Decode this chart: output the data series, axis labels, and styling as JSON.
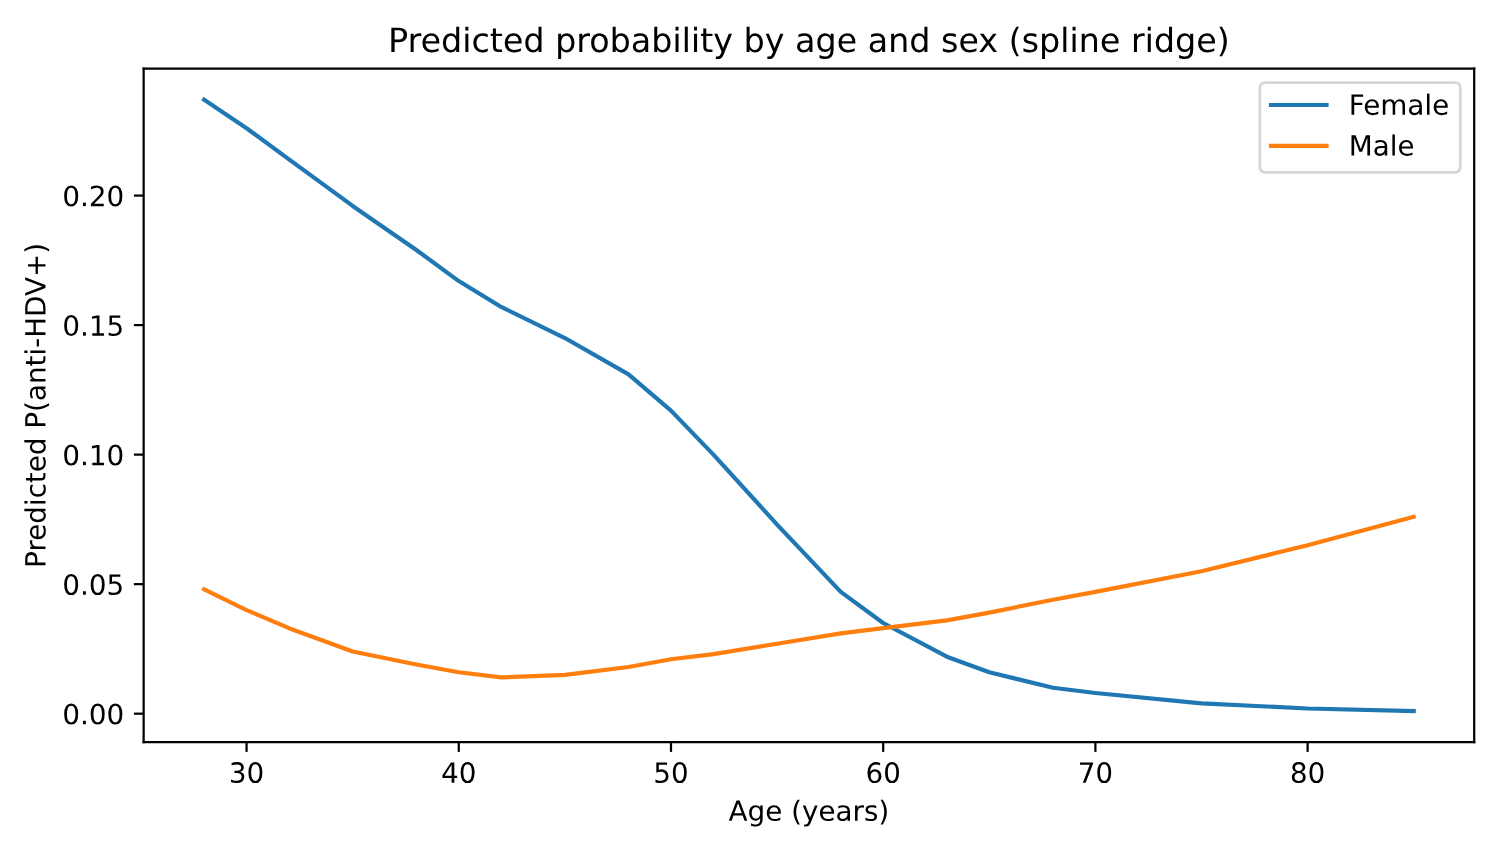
{
  "chart_data": {
    "type": "line",
    "title": "Predicted probability by age and sex (spline ridge)",
    "xlabel": "Age (years)",
    "ylabel": "Predicted P(anti-HDV+)",
    "x": [
      28,
      30,
      32,
      35,
      38,
      40,
      42,
      45,
      48,
      50,
      52,
      55,
      58,
      60,
      63,
      65,
      68,
      70,
      75,
      80,
      85
    ],
    "series": [
      {
        "name": "Female",
        "color": "#1f77b4",
        "values": [
          0.237,
          0.226,
          0.214,
          0.196,
          0.179,
          0.167,
          0.157,
          0.145,
          0.131,
          0.117,
          0.1,
          0.073,
          0.047,
          0.035,
          0.022,
          0.016,
          0.01,
          0.008,
          0.004,
          0.002,
          0.001
        ]
      },
      {
        "name": "Male",
        "color": "#ff7f0e",
        "values": [
          0.048,
          0.04,
          0.033,
          0.024,
          0.019,
          0.016,
          0.014,
          0.015,
          0.018,
          0.021,
          0.023,
          0.027,
          0.031,
          0.033,
          0.036,
          0.039,
          0.044,
          0.047,
          0.055,
          0.065,
          0.076
        ]
      }
    ],
    "xlim": [
      25.15,
      87.85
    ],
    "ylim": [
      -0.011,
      0.249
    ],
    "xticks": [
      30,
      40,
      50,
      60,
      70,
      80
    ],
    "yticks": [
      {
        "value": 0,
        "label": "0.00"
      },
      {
        "value": 0.05,
        "label": "0.05"
      },
      {
        "value": 0.1,
        "label": "0.10"
      },
      {
        "value": 0.15,
        "label": "0.15"
      },
      {
        "value": 0.2,
        "label": "0.20"
      }
    ],
    "legend": "top right",
    "grid": false,
    "marker": "none",
    "line_style": "solid"
  }
}
